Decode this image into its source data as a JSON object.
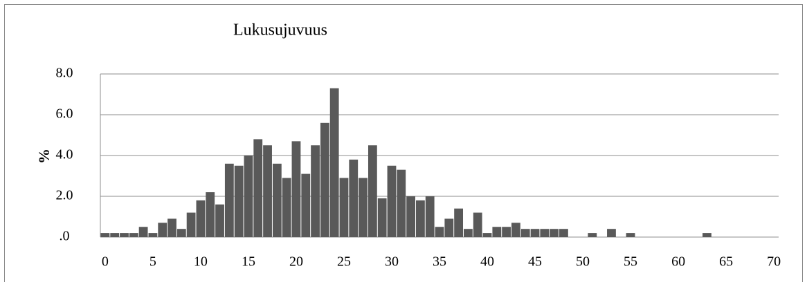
{
  "chart_data": {
    "type": "bar",
    "title": "Lukusujuvuus",
    "y_label": "%",
    "categories": [
      "0",
      null,
      null,
      null,
      null,
      "5",
      null,
      null,
      null,
      null,
      "10",
      null,
      null,
      null,
      null,
      "15",
      null,
      null,
      null,
      null,
      "20",
      null,
      null,
      null,
      null,
      "25",
      null,
      null,
      null,
      null,
      "30",
      null,
      null,
      null,
      null,
      "35",
      null,
      null,
      null,
      null,
      "40",
      null,
      null,
      null,
      null,
      "45",
      null,
      null,
      null,
      null,
      "50",
      null,
      null,
      null,
      null,
      "55",
      null,
      null,
      null,
      null,
      "60",
      null,
      null,
      null,
      null,
      "65",
      null,
      null,
      null,
      null,
      "70"
    ],
    "values": [
      0.2,
      0.2,
      0.2,
      0.2,
      0.5,
      0.2,
      0.7,
      0.9,
      0.4,
      1.2,
      1.8,
      2.2,
      1.6,
      3.6,
      3.5,
      4.0,
      4.8,
      4.5,
      3.6,
      2.9,
      4.7,
      3.1,
      4.5,
      5.6,
      7.3,
      2.9,
      3.8,
      2.9,
      4.5,
      1.9,
      3.5,
      3.3,
      2.0,
      1.8,
      2.0,
      0.5,
      0.9,
      1.4,
      0.4,
      1.2,
      0.2,
      0.5,
      0.5,
      0.7,
      0.4,
      0.4,
      0.4,
      0.4,
      0.4,
      0,
      0,
      0.2,
      0,
      0.4,
      0,
      0.2,
      0,
      0,
      0,
      0,
      0,
      0,
      0,
      0.2,
      0,
      0,
      0,
      0,
      0,
      0,
      0
    ],
    "color": "#595959",
    "ylim": [
      0,
      8
    ],
    "yticks": [
      {
        "value": 0,
        "label": ".0"
      },
      {
        "value": 2,
        "label": "2.0"
      },
      {
        "value": 4,
        "label": "4.0"
      },
      {
        "value": 6,
        "label": "6.0"
      },
      {
        "value": 8,
        "label": "8.0"
      }
    ],
    "grid": true
  }
}
